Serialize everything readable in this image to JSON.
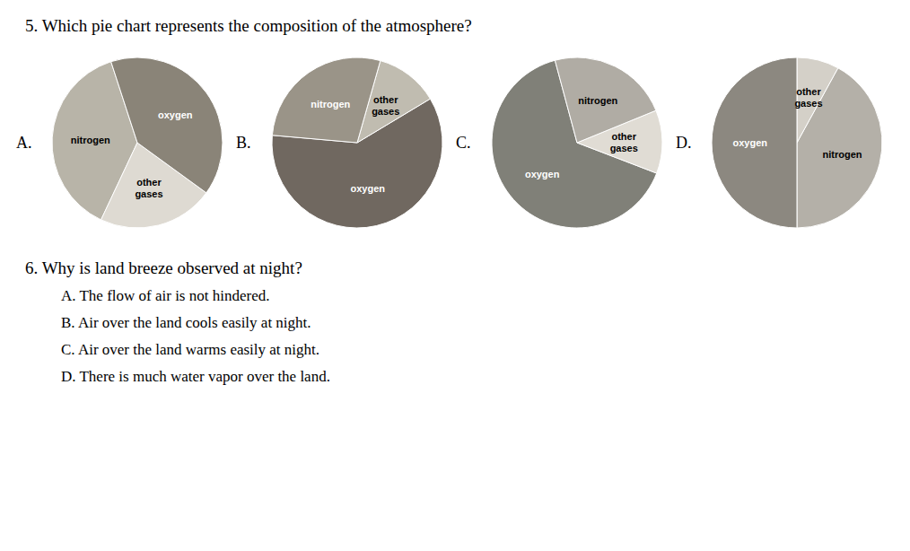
{
  "title": "5. Which pie chart represents the composition of the atmosphere?",
  "annotations": [
    "6. Why is land breeze observed at night?",
    "A. The flow of air is not hindered.",
    "B. Air over the land cools easily at night.",
    "C. Air over the land warms easily at night.",
    "D. There is much water vapor over the land."
  ],
  "chart_data": [
    {
      "type": "pie",
      "title": "A.",
      "categories": [
        "nitrogen",
        "other\ngases",
        "oxygen"
      ],
      "values": [
        38,
        22,
        40
      ],
      "colors": [
        "#b8b4a8",
        "#dedad2",
        "#8a8478"
      ]
    },
    {
      "type": "pie",
      "title": "B.",
      "categories": [
        "oxygen",
        "other\ngases",
        "nitrogen"
      ],
      "values": [
        60,
        12,
        28
      ],
      "colors": [
        "#706860",
        "#c0bcb0",
        "#9a9488"
      ]
    },
    {
      "type": "pie",
      "title": "C.",
      "categories": [
        "oxygen",
        "other\ngases",
        "nitrogen"
      ],
      "values": [
        65,
        12,
        23
      ],
      "colors": [
        "#808078",
        "#e0dcd4",
        "#b0aca4"
      ]
    },
    {
      "type": "pie",
      "title": "D.",
      "categories": [
        "nitrogen",
        "other\ngases",
        "oxygen"
      ],
      "values": [
        42,
        8,
        50
      ],
      "colors": [
        "#b4b0a8",
        "#d4d0c8",
        "#8c8880"
      ]
    }
  ]
}
